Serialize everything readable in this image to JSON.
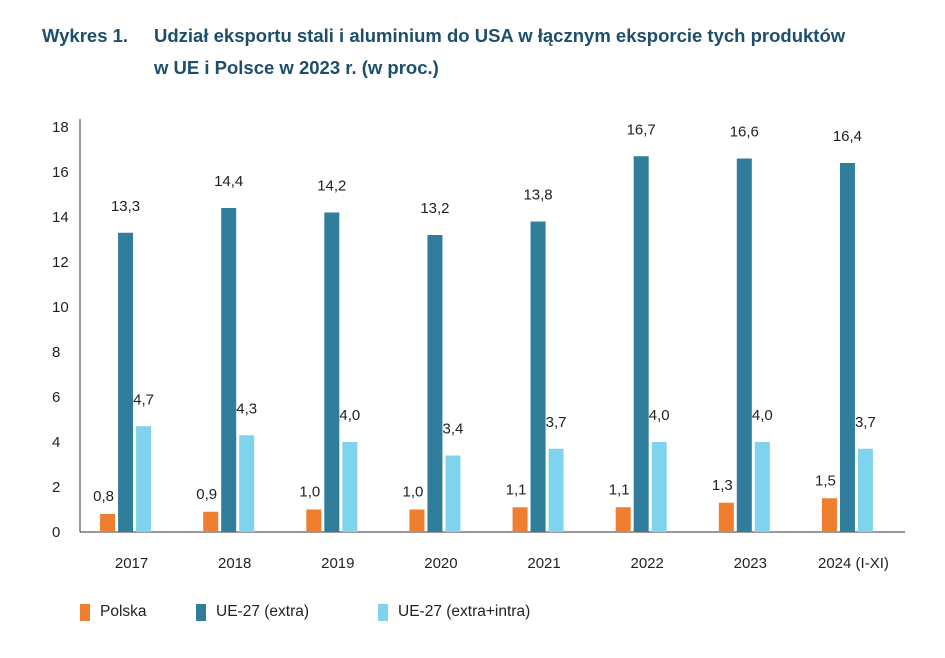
{
  "title": {
    "label": "Wykres 1.",
    "line1": "Udział eksportu stali i aluminium do USA w łącznym eksporcie tych produktów",
    "line2": "w UE i Polsce w 2023 r. (w proc.)"
  },
  "chart_data": {
    "type": "bar",
    "categories": [
      "2017",
      "2018",
      "2019",
      "2020",
      "2021",
      "2022",
      "2023",
      "2024 (I-XI)"
    ],
    "series": [
      {
        "name": "Polska",
        "color": "#ef7f2e",
        "values": [
          0.8,
          0.9,
          1.0,
          1.0,
          1.1,
          1.1,
          1.3,
          1.5
        ]
      },
      {
        "name": "UE-27 (extra)",
        "color": "#307d9c",
        "values": [
          13.3,
          14.4,
          14.2,
          13.2,
          13.8,
          16.7,
          16.6,
          16.4
        ]
      },
      {
        "name": "UE-27 (extra+intra)",
        "color": "#7fd3ec",
        "values": [
          4.7,
          4.3,
          4.0,
          3.4,
          3.7,
          4.0,
          4.0,
          3.7
        ]
      }
    ],
    "ylim": [
      0,
      18
    ],
    "yticks": [
      0,
      2,
      4,
      6,
      8,
      10,
      12,
      14,
      16,
      18
    ],
    "grid": false,
    "legend_position": "bottom-left",
    "data_labels": true,
    "decimal_separator": ","
  }
}
